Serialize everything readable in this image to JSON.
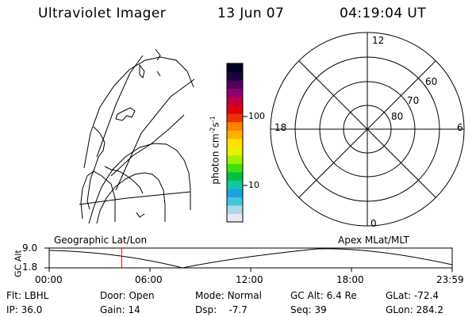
{
  "header": {
    "title": "Ultraviolet Imager",
    "date": "13 Jun 07",
    "time": "04:19:04 UT"
  },
  "colorbar": {
    "label": "photon cm",
    "sup1": "-2",
    "mid": "s",
    "sup2": "-1",
    "ticks": [
      "100",
      "10"
    ],
    "colors": [
      "#e8e8f0",
      "#b0d8e8",
      "#40c8d8",
      "#20a0e0",
      "#10c8a0",
      "#00c040",
      "#40e010",
      "#a0f000",
      "#e8f000",
      "#ffe000",
      "#ffb000",
      "#ff8000",
      "#f03000",
      "#e00010",
      "#c00040",
      "#900070",
      "#500060",
      "#200040",
      "#000020"
    ]
  },
  "polar": {
    "mlt_labels": {
      "top": "12",
      "left": "18",
      "right": "6",
      "bottom": "0"
    },
    "lat_labels": [
      "60",
      "70",
      "80"
    ]
  },
  "timeline": {
    "ylabel": "GC Alt",
    "ymax": "9.0",
    "ymin": "1.8",
    "left_caption": "Geographic Lat/Lon",
    "right_caption": "Apex MLat/MLT",
    "ticks": [
      "00:00",
      "06:00",
      "12:00",
      "18:00",
      "23:59"
    ],
    "current_fraction": 0.18,
    "current_marker_color": "#ff0000"
  },
  "status": {
    "filter_label": "Flt:",
    "filter_value": "LBHL",
    "ip_label": "IP:",
    "ip_value": "36.0",
    "door_label": "Door:",
    "door_value": "Open",
    "gain_label": "Gain:",
    "gain_value": "14",
    "mode_label": "Mode:",
    "mode_value": "Normal",
    "dsp_label": "Dsp:",
    "dsp_value": "-7.7",
    "gcalt_label": "GC Alt:",
    "gcalt_value": "6.4 Re",
    "seq_label": "Seq:",
    "seq_value": "39",
    "glat_label": "GLat:",
    "glat_value": "-72.4",
    "glon_label": "GLon:",
    "glon_value": "284.2"
  }
}
